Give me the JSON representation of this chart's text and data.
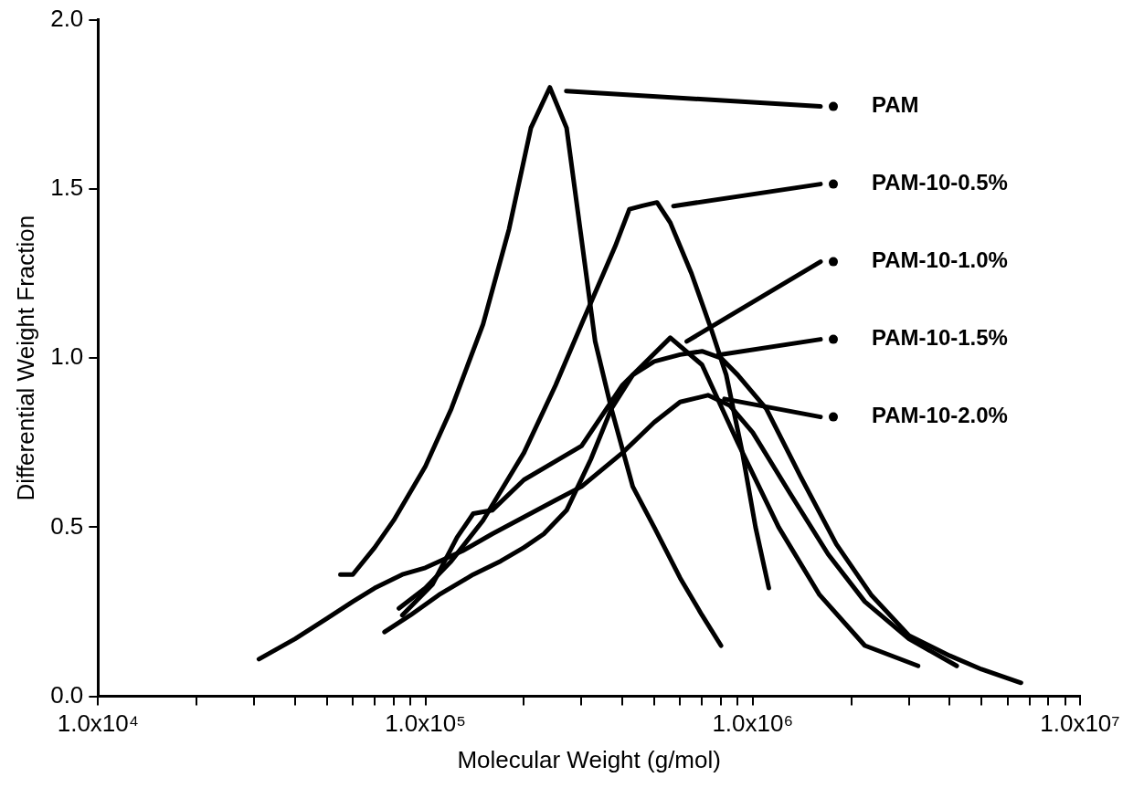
{
  "chart_data": {
    "type": "line",
    "xlabel": "Molecular Weight (g/mol)",
    "ylabel": "Differential Weight Fraction",
    "log": "x",
    "grid": false,
    "legend": "top right",
    "xlim": [
      10000,
      10000000
    ],
    "xticks": [
      {
        "value": 10000,
        "label": "1.0x10⁴"
      },
      {
        "value": 20000,
        "label": null
      },
      {
        "value": 30000,
        "label": null
      },
      {
        "value": 40000,
        "label": null
      },
      {
        "value": 50000,
        "label": null
      },
      {
        "value": 60000,
        "label": null
      },
      {
        "value": 70000,
        "label": null
      },
      {
        "value": 80000,
        "label": null
      },
      {
        "value": 90000,
        "label": null
      },
      {
        "value": 100000,
        "label": "1.0x10⁵"
      },
      {
        "value": 200000,
        "label": null
      },
      {
        "value": 300000,
        "label": null
      },
      {
        "value": 400000,
        "label": null
      },
      {
        "value": 500000,
        "label": null
      },
      {
        "value": 600000,
        "label": null
      },
      {
        "value": 700000,
        "label": null
      },
      {
        "value": 800000,
        "label": null
      },
      {
        "value": 900000,
        "label": null
      },
      {
        "value": 1000000,
        "label": "1.0x10⁶"
      },
      {
        "value": 2000000,
        "label": null
      },
      {
        "value": 3000000,
        "label": null
      },
      {
        "value": 4000000,
        "label": null
      },
      {
        "value": 5000000,
        "label": null
      },
      {
        "value": 6000000,
        "label": null
      },
      {
        "value": 7000000,
        "label": null
      },
      {
        "value": 8000000,
        "label": null
      },
      {
        "value": 9000000,
        "label": null
      },
      {
        "value": 10000000,
        "label": "1.0x10⁷"
      }
    ],
    "ylim": [
      0,
      2
    ],
    "yticks": [
      {
        "value": 0,
        "label": "0.0"
      },
      {
        "value": 0.5,
        "label": "0.5"
      },
      {
        "value": 1,
        "label": "1.0"
      },
      {
        "value": 1.5,
        "label": "1.5"
      },
      {
        "value": 2,
        "label": "2.0"
      }
    ],
    "series": [
      {
        "name": "PAM",
        "color": "#000000",
        "x": [
          55000,
          60000,
          70000,
          80000,
          100000,
          120000,
          150000,
          180000,
          210000,
          240000,
          270000,
          300000,
          330000,
          370000,
          430000,
          500000,
          600000,
          700000,
          800000
        ],
        "values": [
          0.36,
          0.36,
          0.44,
          0.52,
          0.68,
          0.85,
          1.1,
          1.38,
          1.68,
          1.8,
          1.68,
          1.35,
          1.05,
          0.85,
          0.62,
          0.5,
          0.35,
          0.24,
          0.15
        ]
      },
      {
        "name": "PAM-10-0.5%",
        "color": "#000000",
        "x": [
          83000,
          100000,
          120000,
          150000,
          200000,
          250000,
          300000,
          350000,
          380000,
          420000,
          460000,
          510000,
          560000,
          650000,
          750000,
          830000,
          930000,
          1020000,
          1120000
        ],
        "values": [
          0.26,
          0.32,
          0.4,
          0.52,
          0.72,
          0.92,
          1.1,
          1.25,
          1.33,
          1.44,
          1.45,
          1.46,
          1.4,
          1.25,
          1.08,
          0.95,
          0.72,
          0.5,
          0.32
        ]
      },
      {
        "name": "PAM-10-1.0%",
        "color": "#000000",
        "x": [
          85000,
          105000,
          125000,
          140000,
          160000,
          200000,
          300000,
          400000,
          560000,
          700000,
          900000,
          1200000,
          1600000,
          2200000,
          3200000
        ],
        "values": [
          0.24,
          0.33,
          0.47,
          0.54,
          0.55,
          0.64,
          0.74,
          0.92,
          1.06,
          0.98,
          0.75,
          0.5,
          0.3,
          0.15,
          0.09
        ]
      },
      {
        "name": "PAM-10-1.5%",
        "color": "#000000",
        "x": [
          75000,
          90000,
          110000,
          140000,
          170000,
          200000,
          230000,
          270000,
          320000,
          370000,
          430000,
          500000,
          600000,
          700000,
          800000,
          900000,
          1100000,
          1400000,
          1800000,
          2300000,
          3000000,
          4000000,
          5000000,
          6600000
        ],
        "values": [
          0.19,
          0.24,
          0.3,
          0.36,
          0.4,
          0.44,
          0.48,
          0.55,
          0.7,
          0.85,
          0.95,
          0.99,
          1.01,
          1.02,
          1.0,
          0.95,
          0.85,
          0.65,
          0.45,
          0.3,
          0.18,
          0.12,
          0.08,
          0.04
        ]
      },
      {
        "name": "PAM-10-2.0%",
        "color": "#000000",
        "x": [
          31000,
          40000,
          50000,
          60000,
          70000,
          85000,
          100000,
          130000,
          160000,
          200000,
          250000,
          300000,
          400000,
          500000,
          600000,
          730000,
          850000,
          1000000,
          1300000,
          1700000,
          2200000,
          3000000,
          4200000
        ],
        "values": [
          0.11,
          0.17,
          0.23,
          0.28,
          0.32,
          0.36,
          0.38,
          0.43,
          0.48,
          0.53,
          0.58,
          0.62,
          0.72,
          0.81,
          0.87,
          0.89,
          0.86,
          0.78,
          0.6,
          0.42,
          0.28,
          0.17,
          0.09
        ]
      }
    ]
  }
}
